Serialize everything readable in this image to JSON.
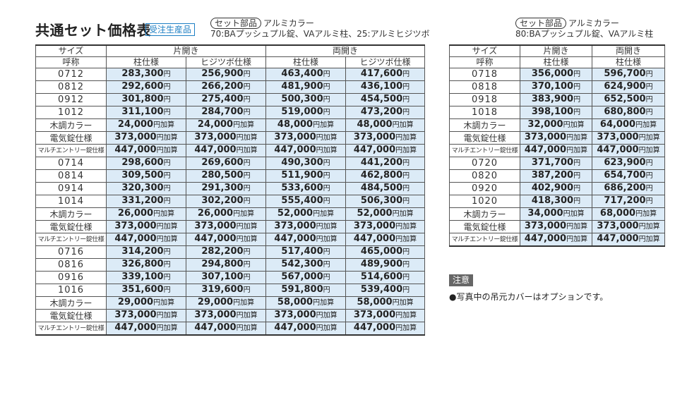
{
  "title": "共通セット価格表",
  "badge": "受注生産品",
  "left_note": {
    "pill": "セット部品",
    "line1": "アルミカラー",
    "line2": "70:BAプッシュプル錠、VAアルミ柱、25:アルミヒジツボ"
  },
  "right_note": {
    "pill": "セット部品",
    "line1": "アルミカラー",
    "line2": "80:BAプッシュプル錠、VAアルミ柱"
  },
  "headers": {
    "size": "サイズ",
    "call": "呼称",
    "single": "片開き",
    "double": "両開き",
    "pillar": "柱仕様",
    "hiji": "ヒジツボ仕様"
  },
  "left_rows": [
    {
      "size": "0712",
      "v": [
        "283,300",
        "256,900",
        "463,400",
        "417,600"
      ],
      "u": "円"
    },
    {
      "size": "0812",
      "v": [
        "292,600",
        "266,200",
        "481,900",
        "436,100"
      ],
      "u": "円"
    },
    {
      "size": "0912",
      "v": [
        "301,800",
        "275,400",
        "500,300",
        "454,500"
      ],
      "u": "円"
    },
    {
      "size": "1012",
      "v": [
        "311,100",
        "284,700",
        "519,000",
        "473,200"
      ],
      "u": "円"
    },
    {
      "size": "木調カラー",
      "kind": "jp",
      "v": [
        "24,000",
        "24,000",
        "48,000",
        "48,000"
      ],
      "u": "円加算"
    },
    {
      "size": "電気錠仕様",
      "kind": "jp",
      "v": [
        "373,000",
        "373,000",
        "373,000",
        "373,000"
      ],
      "u": "円加算"
    },
    {
      "size": "マルチエントリー錠仕様",
      "kind": "multi",
      "v": [
        "447,000",
        "447,000",
        "447,000",
        "447,000"
      ],
      "u": "円加算"
    },
    {
      "size": "0714",
      "v": [
        "298,600",
        "269,600",
        "490,300",
        "441,200"
      ],
      "u": "円"
    },
    {
      "size": "0814",
      "v": [
        "309,500",
        "280,500",
        "511,900",
        "462,800"
      ],
      "u": "円"
    },
    {
      "size": "0914",
      "v": [
        "320,300",
        "291,300",
        "533,600",
        "484,500"
      ],
      "u": "円"
    },
    {
      "size": "1014",
      "v": [
        "331,200",
        "302,200",
        "555,400",
        "506,300"
      ],
      "u": "円"
    },
    {
      "size": "木調カラー",
      "kind": "jp",
      "v": [
        "26,000",
        "26,000",
        "52,000",
        "52,000"
      ],
      "u": "円加算"
    },
    {
      "size": "電気錠仕様",
      "kind": "jp",
      "v": [
        "373,000",
        "373,000",
        "373,000",
        "373,000"
      ],
      "u": "円加算"
    },
    {
      "size": "マルチエントリー錠仕様",
      "kind": "multi",
      "v": [
        "447,000",
        "447,000",
        "447,000",
        "447,000"
      ],
      "u": "円加算"
    },
    {
      "size": "0716",
      "v": [
        "314,200",
        "282,200",
        "517,400",
        "465,000"
      ],
      "u": "円"
    },
    {
      "size": "0816",
      "v": [
        "326,800",
        "294,800",
        "542,300",
        "489,900"
      ],
      "u": "円"
    },
    {
      "size": "0916",
      "v": [
        "339,100",
        "307,100",
        "567,000",
        "514,600"
      ],
      "u": "円"
    },
    {
      "size": "1016",
      "v": [
        "351,600",
        "319,600",
        "591,800",
        "539,400"
      ],
      "u": "円"
    },
    {
      "size": "木調カラー",
      "kind": "jp",
      "v": [
        "29,000",
        "29,000",
        "58,000",
        "58,000"
      ],
      "u": "円加算"
    },
    {
      "size": "電気錠仕様",
      "kind": "jp",
      "v": [
        "373,000",
        "373,000",
        "373,000",
        "373,000"
      ],
      "u": "円加算"
    },
    {
      "size": "マルチエントリー錠仕様",
      "kind": "multi",
      "v": [
        "447,000",
        "447,000",
        "447,000",
        "447,000"
      ],
      "u": "円加算"
    }
  ],
  "right_rows": [
    {
      "size": "0718",
      "v": [
        "356,000",
        "596,700"
      ],
      "u": "円"
    },
    {
      "size": "0818",
      "v": [
        "370,100",
        "624,900"
      ],
      "u": "円"
    },
    {
      "size": "0918",
      "v": [
        "383,900",
        "652,500"
      ],
      "u": "円"
    },
    {
      "size": "1018",
      "v": [
        "398,100",
        "680,800"
      ],
      "u": "円"
    },
    {
      "size": "木調カラー",
      "kind": "jp",
      "v": [
        "32,000",
        "64,000"
      ],
      "u": "円加算"
    },
    {
      "size": "電気錠仕様",
      "kind": "jp",
      "v": [
        "373,000",
        "373,000"
      ],
      "u": "円加算"
    },
    {
      "size": "マルチエントリー錠仕様",
      "kind": "multi",
      "v": [
        "447,000",
        "447,000"
      ],
      "u": "円加算"
    },
    {
      "size": "0720",
      "v": [
        "371,700",
        "623,900"
      ],
      "u": "円"
    },
    {
      "size": "0820",
      "v": [
        "387,200",
        "654,700"
      ],
      "u": "円"
    },
    {
      "size": "0920",
      "v": [
        "402,900",
        "686,200"
      ],
      "u": "円"
    },
    {
      "size": "1020",
      "v": [
        "418,300",
        "717,200"
      ],
      "u": "円"
    },
    {
      "size": "木調カラー",
      "kind": "jp",
      "v": [
        "34,000",
        "68,000"
      ],
      "u": "円加算"
    },
    {
      "size": "電気錠仕様",
      "kind": "jp",
      "v": [
        "373,000",
        "373,000"
      ],
      "u": "円加算"
    },
    {
      "size": "マルチエントリー錠仕様",
      "kind": "multi",
      "v": [
        "447,000",
        "447,000"
      ],
      "u": "円加算"
    }
  ],
  "note_head": "注意",
  "note_text": "●写真中の吊元カバーはオプションです。"
}
